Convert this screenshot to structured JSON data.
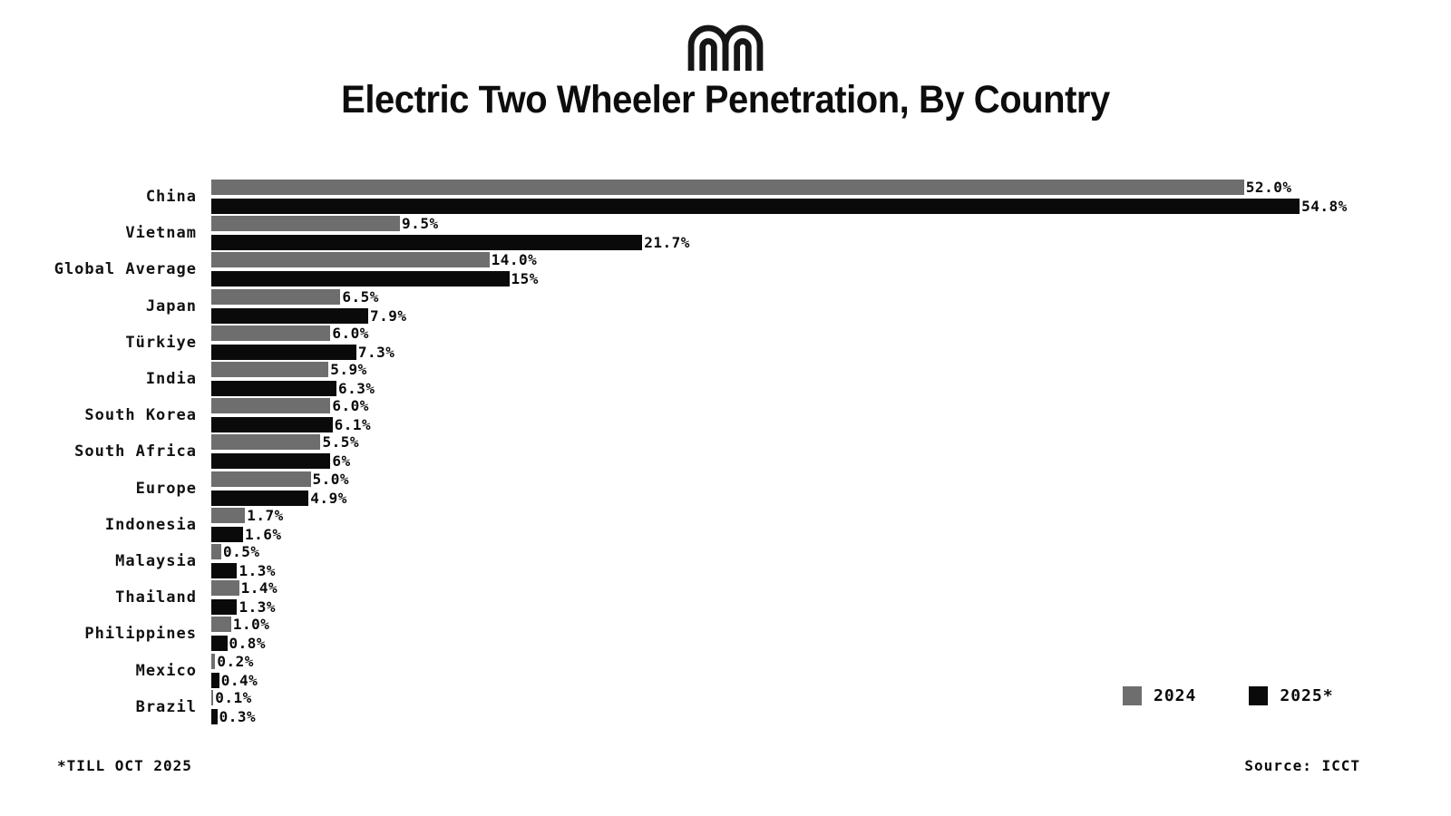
{
  "title": "Electric Two Wheeler Penetration, By Country",
  "logo_icon": "mint-m-logo",
  "footnote": "*TILL OCT 2025",
  "source": "Source: ICCT",
  "legend": {
    "items": [
      {
        "label": "2024",
        "color": "#6e6e6e"
      },
      {
        "label": "2025*",
        "color": "#0a0a0a"
      }
    ]
  },
  "chart_data": {
    "type": "bar",
    "orientation": "horizontal",
    "title": "Electric Two Wheeler Penetration, By Country",
    "xlabel": "",
    "ylabel": "",
    "xlim": [
      0,
      56
    ],
    "grid": false,
    "legend_position": "bottom-right",
    "value_suffix": "%",
    "categories": [
      "China",
      "Vietnam",
      "Global Average",
      "Japan",
      "Türkiye",
      "India",
      "South Korea",
      "South Africa",
      "Europe",
      "Indonesia",
      "Malaysia",
      "Thailand",
      "Philippines",
      "Mexico",
      "Brazil"
    ],
    "series": [
      {
        "name": "2024",
        "color": "#6e6e6e",
        "values": [
          52.0,
          9.5,
          14.0,
          6.5,
          6.0,
          5.9,
          6.0,
          5.5,
          5.0,
          1.7,
          0.5,
          1.4,
          1.0,
          0.2,
          0.1
        ],
        "labels": [
          "52.0%",
          "9.5%",
          "14.0%",
          "6.5%",
          "6.0%",
          "5.9%",
          "6.0%",
          "5.5%",
          "5.0%",
          "1.7%",
          "0.5%",
          "1.4%",
          "1.0%",
          "0.2%",
          "0.1%"
        ]
      },
      {
        "name": "2025*",
        "color": "#0a0a0a",
        "values": [
          54.8,
          21.7,
          15,
          7.9,
          7.3,
          6.3,
          6.1,
          6,
          4.9,
          1.6,
          1.3,
          1.3,
          0.8,
          0.4,
          0.3
        ],
        "labels": [
          "54.8%",
          "21.7%",
          "15%",
          "7.9%",
          "7.3%",
          "6.3%",
          "6.1%",
          "6%",
          "4.9%",
          "1.6%",
          "1.3%",
          "1.3%",
          "0.8%",
          "0.4%",
          "0.3%"
        ]
      }
    ]
  }
}
